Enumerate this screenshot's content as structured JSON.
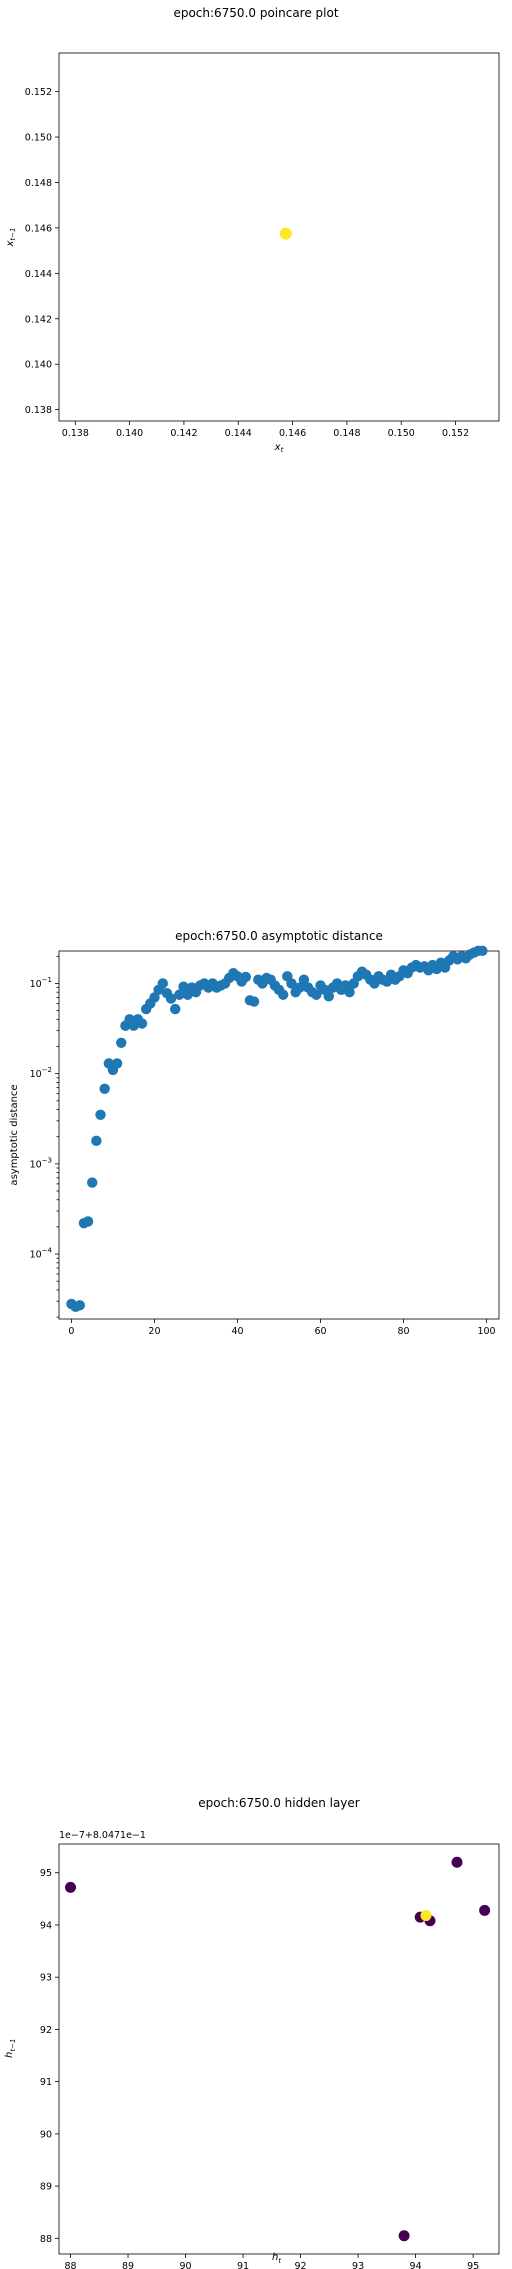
{
  "charts": {
    "poincare": {
      "title": "epoch:6750.0 poincare plot",
      "xlabel": "x_t",
      "ylabel": "x_{t-1}",
      "xticks": [
        0.138,
        0.14,
        0.142,
        0.144,
        0.146,
        0.148,
        0.15,
        0.152
      ],
      "yticks": [
        0.138,
        0.14,
        0.142,
        0.144,
        0.146,
        0.148,
        0.15,
        0.152
      ],
      "xlim": [
        0.1374,
        0.1536
      ],
      "ylim": [
        0.1375,
        0.1537
      ]
    },
    "asymptotic": {
      "title": "epoch:6750.0 asymptotic distance",
      "xlabel": "iteration",
      "ylabel": "asymptotic distance",
      "xticks": [
        0,
        20,
        40,
        60,
        80,
        100
      ],
      "yticks_exp": [
        -4,
        -3,
        -2,
        -1
      ],
      "xlim": [
        -3,
        103
      ],
      "ylog_min": -4.72,
      "ylog_max": -0.64
    },
    "hidden": {
      "title": "epoch:6750.0 hidden layer",
      "xlabel": "h_t",
      "ylabel": "h_{t-1}",
      "offset_label": "1e−7+8.0471e−1",
      "xticks": [
        88,
        89,
        90,
        91,
        92,
        93,
        94,
        95
      ],
      "yticks": [
        88,
        89,
        90,
        91,
        92,
        93,
        94,
        95
      ],
      "xlim": [
        87.8,
        95.45
      ],
      "ylim": [
        87.7,
        95.55
      ]
    }
  },
  "chart_data": [
    {
      "type": "scatter",
      "title": "epoch:6750.0 poincare plot",
      "xlabel": "x_t",
      "ylabel": "x_{t-1}",
      "xlim": [
        0.1374,
        0.1536
      ],
      "ylim": [
        0.1375,
        0.1537
      ],
      "points": [
        {
          "x": 0.14575,
          "y": 0.14575,
          "color": "#fde725"
        }
      ]
    },
    {
      "type": "scatter",
      "title": "epoch:6750.0 asymptotic distance",
      "xlabel": "iteration",
      "ylabel": "asymptotic distance",
      "yscale": "log",
      "color": "#1f77b4",
      "x": [
        0,
        1,
        2,
        3,
        4,
        5,
        6,
        7,
        8,
        9,
        10,
        11,
        12,
        13,
        14,
        15,
        16,
        17,
        18,
        19,
        20,
        21,
        22,
        23,
        24,
        25,
        26,
        27,
        28,
        29,
        30,
        31,
        32,
        33,
        34,
        35,
        36,
        37,
        38,
        39,
        40,
        41,
        42,
        43,
        44,
        45,
        46,
        47,
        48,
        49,
        50,
        51,
        52,
        53,
        54,
        55,
        56,
        57,
        58,
        59,
        60,
        61,
        62,
        63,
        64,
        65,
        66,
        67,
        68,
        69,
        70,
        71,
        72,
        73,
        74,
        75,
        76,
        77,
        78,
        79,
        80,
        81,
        82,
        83,
        84,
        85,
        86,
        87,
        88,
        89,
        90,
        91,
        92,
        93,
        94,
        95,
        96,
        97,
        98,
        99
      ],
      "y": [
        2.8e-05,
        2.6e-05,
        2.7e-05,
        0.00022,
        0.00023,
        0.00062,
        0.0018,
        0.0035,
        0.0068,
        0.013,
        0.011,
        0.013,
        0.022,
        0.034,
        0.04,
        0.034,
        0.04,
        0.036,
        0.052,
        0.06,
        0.07,
        0.085,
        0.1,
        0.078,
        0.068,
        0.052,
        0.075,
        0.092,
        0.075,
        0.09,
        0.08,
        0.095,
        0.1,
        0.09,
        0.1,
        0.09,
        0.095,
        0.1,
        0.115,
        0.13,
        0.12,
        0.105,
        0.118,
        0.065,
        0.063,
        0.11,
        0.1,
        0.115,
        0.11,
        0.095,
        0.085,
        0.075,
        0.12,
        0.1,
        0.08,
        0.09,
        0.11,
        0.09,
        0.08,
        0.075,
        0.095,
        0.085,
        0.072,
        0.09,
        0.1,
        0.085,
        0.095,
        0.08,
        0.1,
        0.12,
        0.135,
        0.125,
        0.11,
        0.1,
        0.12,
        0.11,
        0.105,
        0.125,
        0.11,
        0.12,
        0.14,
        0.13,
        0.15,
        0.16,
        0.15,
        0.155,
        0.14,
        0.16,
        0.145,
        0.17,
        0.15,
        0.18,
        0.2,
        0.185,
        0.2,
        0.19,
        0.21,
        0.22,
        0.23,
        0.23
      ]
    },
    {
      "type": "scatter",
      "title": "epoch:6750.0 hidden layer",
      "xlabel": "h_t",
      "ylabel": "h_{t-1}",
      "offset": "1e-7+8.0471e-1",
      "xlim": [
        87.8,
        95.45
      ],
      "ylim": [
        87.7,
        95.55
      ],
      "points": [
        {
          "x": 88.0,
          "y": 94.72,
          "color": "#440154"
        },
        {
          "x": 93.8,
          "y": 88.05,
          "color": "#440154"
        },
        {
          "x": 94.08,
          "y": 94.15,
          "color": "#440154"
        },
        {
          "x": 94.25,
          "y": 94.08,
          "color": "#440154"
        },
        {
          "x": 94.72,
          "y": 95.2,
          "color": "#440154"
        },
        {
          "x": 95.2,
          "y": 94.28,
          "color": "#440154"
        },
        {
          "x": 94.18,
          "y": 94.18,
          "color": "#fde725"
        }
      ]
    }
  ]
}
